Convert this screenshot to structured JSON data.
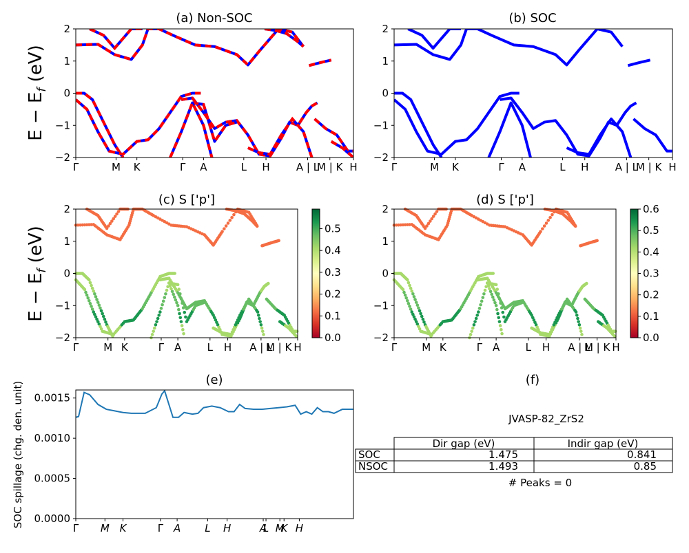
{
  "figure": {
    "panel_a": {
      "title": "(a) Non-SOC"
    },
    "panel_b": {
      "title": "(b) SOC"
    },
    "panel_c": {
      "title": "(c)  S ['p']"
    },
    "panel_d": {
      "title": "(d) S ['p']"
    },
    "panel_e": {
      "title": "(e)"
    },
    "panel_f": {
      "title": "(f)"
    },
    "ylabel_energy": "E − E",
    "ylabel_energy_sub": "f",
    "ylabel_energy_unit": " (eV)",
    "ylabel_spillage": "SOC spillage (chg. den. unit)",
    "kpath_labels_a": [
      "Γ",
      "M",
      "K",
      "Γ",
      "A",
      "L",
      "H",
      "A | L",
      "M | K",
      "H"
    ],
    "kpath_labels_c": [
      "Γ",
      "M",
      "K",
      "Γ",
      "A",
      "L",
      "H",
      "A | L",
      "M | K",
      "H"
    ],
    "kpath_labels_e": [
      "Γ",
      "M",
      "K",
      "Γ",
      "A",
      "L",
      "H",
      "A",
      "L",
      "M",
      "K",
      "H"
    ],
    "energy_yticks": [
      "2",
      "1",
      "0",
      "−1",
      "−2"
    ],
    "colorbar_c_ticks": [
      "0.5",
      "0.4",
      "0.3",
      "0.2",
      "0.1",
      "0.0"
    ],
    "colorbar_d_ticks": [
      "0.6",
      "0.5",
      "0.4",
      "0.3",
      "0.2",
      "0.1",
      "0.0"
    ],
    "spillage_yticks": [
      "0.0015",
      "0.0010",
      "0.0005",
      "0.0000"
    ],
    "table": {
      "material": "JVASP-82_ZrS2",
      "col_headers": [
        "Dir gap (eV)",
        "Indir gap (eV)"
      ],
      "rows": [
        {
          "label": "SOC",
          "dir": "1.475",
          "indir": "0.841"
        },
        {
          "label": "NSOC",
          "dir": "1.493",
          "indir": "0.85"
        }
      ],
      "peaks": "# Peaks = 0"
    },
    "colors": {
      "band_blue": "#0000ff",
      "band_red": "#ff0000",
      "spillage_line": "#1f77b4"
    }
  },
  "chart_data": [
    {
      "type": "line",
      "title": "(a) Non-SOC",
      "ylabel": "E − E_f (eV)",
      "ylim": [
        -2,
        2
      ],
      "xlim": [
        0,
        1
      ],
      "xticks": [
        "Γ",
        "M",
        "K",
        "Γ",
        "A",
        "L",
        "H",
        "A | L",
        "M | K",
        "H"
      ],
      "note": "non-SOC bands drawn blue with red dashes",
      "series": [
        {
          "x": [
            0,
            0.08,
            0.14,
            0.2,
            0.24,
            0.26,
            0.3,
            0.35,
            0.43,
            0.5,
            0.58,
            0.62,
            0.66,
            0.73,
            0.78,
            0.82
          ],
          "y": [
            1.5,
            1.52,
            1.2,
            1.05,
            1.5,
            2.0,
            2.0,
            1.8,
            1.5,
            1.45,
            1.2,
            0.88,
            1.3,
            2.0,
            1.9,
            1.45
          ]
        },
        {
          "x": [
            0.05,
            0.1,
            0.14,
            0.2,
            0.24
          ],
          "y": [
            2.0,
            1.8,
            1.4,
            2.0,
            2.0
          ]
        },
        {
          "x": [
            0.68,
            0.72,
            0.76,
            0.8,
            0.82
          ],
          "y": [
            2.0,
            1.95,
            1.85,
            1.6,
            1.45
          ]
        },
        {
          "x": [
            0.84,
            0.88,
            0.92
          ],
          "y": [
            0.86,
            0.95,
            1.03
          ]
        },
        {
          "x": [
            0,
            0.03,
            0.06,
            0.1,
            0.14,
            0.17
          ],
          "y": [
            0,
            0,
            -0.2,
            -0.9,
            -1.6,
            -2.0
          ]
        },
        {
          "x": [
            0,
            0.04,
            0.08,
            0.12,
            0.17,
            0.22,
            0.26,
            0.3,
            0.34,
            0.38,
            0.42,
            0.45
          ],
          "y": [
            -0.2,
            -0.5,
            -1.2,
            -1.8,
            -1.9,
            -1.5,
            -1.45,
            -1.1,
            -0.6,
            -0.1,
            0,
            0
          ]
        },
        {
          "x": [
            0.38,
            0.42,
            0.46,
            0.5,
            0.54,
            0.58,
            0.62,
            0.66,
            0.7,
            0.74,
            0.77,
            0.8,
            0.83,
            0.85,
            0.87
          ],
          "y": [
            -0.2,
            -0.15,
            -0.6,
            -1.1,
            -0.9,
            -0.85,
            -1.3,
            -1.9,
            -1.95,
            -1.4,
            -0.9,
            -1.0,
            -0.6,
            -0.4,
            -0.3
          ]
        },
        {
          "x": [
            0.42,
            0.46,
            0.5,
            0.54,
            0.58
          ],
          "y": [
            -0.3,
            -0.35,
            -1.5,
            -1.0,
            -0.9
          ]
        },
        {
          "x": [
            0.34,
            0.38,
            0.42,
            0.46,
            0.49
          ],
          "y": [
            -2.0,
            -1.2,
            -0.3,
            -1.0,
            -2.0
          ]
        },
        {
          "x": [
            0.62,
            0.66,
            0.7,
            0.74,
            0.78,
            0.82,
            0.85
          ],
          "y": [
            -1.7,
            -1.85,
            -1.9,
            -1.3,
            -0.8,
            -1.2,
            -2.0
          ]
        },
        {
          "x": [
            0.86,
            0.9,
            0.94,
            0.98,
            1.0
          ],
          "y": [
            -0.8,
            -1.1,
            -1.3,
            -1.8,
            -1.8
          ]
        },
        {
          "x": [
            0.92,
            0.96,
            1.0
          ],
          "y": [
            -1.5,
            -1.7,
            -2.0
          ]
        }
      ]
    },
    {
      "type": "line",
      "title": "(b) SOC",
      "ylim": [
        -2,
        2
      ],
      "xlim": [
        0,
        1
      ],
      "xticks": [
        "Γ",
        "M",
        "K",
        "Γ",
        "A",
        "L",
        "H",
        "A | L",
        "M | K",
        "H"
      ],
      "note": "SOC bands drawn blue",
      "series": [
        {
          "x": [
            0,
            0.08,
            0.14,
            0.2,
            0.24,
            0.26,
            0.3,
            0.35,
            0.43,
            0.5,
            0.58,
            0.62,
            0.66,
            0.73,
            0.78,
            0.82
          ],
          "y": [
            1.5,
            1.52,
            1.2,
            1.05,
            1.5,
            2.0,
            2.0,
            1.8,
            1.5,
            1.45,
            1.2,
            0.88,
            1.3,
            2.0,
            1.9,
            1.45
          ]
        },
        {
          "x": [
            0.05,
            0.1,
            0.14,
            0.2,
            0.24
          ],
          "y": [
            2.0,
            1.8,
            1.4,
            2.0,
            2.0
          ]
        },
        {
          "x": [
            0.84,
            0.88,
            0.92
          ],
          "y": [
            0.86,
            0.95,
            1.03
          ]
        },
        {
          "x": [
            0,
            0.03,
            0.06,
            0.1,
            0.14,
            0.17
          ],
          "y": [
            0,
            0,
            -0.2,
            -0.9,
            -1.6,
            -2.0
          ]
        },
        {
          "x": [
            0,
            0.04,
            0.08,
            0.12,
            0.17,
            0.22,
            0.26,
            0.3,
            0.34,
            0.38,
            0.42,
            0.45
          ],
          "y": [
            -0.2,
            -0.5,
            -1.2,
            -1.8,
            -1.9,
            -1.5,
            -1.45,
            -1.1,
            -0.6,
            -0.1,
            0,
            0
          ]
        },
        {
          "x": [
            0.38,
            0.42,
            0.46,
            0.5,
            0.54,
            0.58,
            0.62,
            0.66,
            0.7,
            0.74,
            0.77,
            0.8,
            0.83,
            0.85,
            0.87
          ],
          "y": [
            -0.2,
            -0.15,
            -0.6,
            -1.1,
            -0.9,
            -0.85,
            -1.3,
            -1.9,
            -1.95,
            -1.4,
            -0.9,
            -1.0,
            -0.6,
            -0.4,
            -0.3
          ]
        },
        {
          "x": [
            0.34,
            0.38,
            0.42,
            0.46,
            0.49
          ],
          "y": [
            -2.0,
            -1.2,
            -0.3,
            -1.0,
            -2.0
          ]
        },
        {
          "x": [
            0.62,
            0.66,
            0.7,
            0.74,
            0.78,
            0.82,
            0.85
          ],
          "y": [
            -1.7,
            -1.85,
            -1.9,
            -1.3,
            -0.8,
            -1.2,
            -2.0
          ]
        },
        {
          "x": [
            0.86,
            0.9,
            0.94,
            0.98,
            1.0
          ],
          "y": [
            -0.8,
            -1.1,
            -1.3,
            -1.8,
            -1.8
          ]
        }
      ]
    },
    {
      "type": "scatter",
      "title": "(c)  S ['p']",
      "ylabel": "E − E_f (eV)",
      "ylim": [
        -2,
        2
      ],
      "xlim": [
        0,
        1
      ],
      "colorbar_range": [
        0.0,
        0.59
      ],
      "colormap": "RdYlGn",
      "note": "points: x, energy, p-character"
    },
    {
      "type": "scatter",
      "title": "(d) S ['p']",
      "ylim": [
        -2,
        2
      ],
      "xlim": [
        0,
        1
      ],
      "colorbar_range": [
        0.0,
        0.6
      ],
      "colormap": "RdYlGn"
    },
    {
      "type": "line",
      "title": "(e)",
      "ylabel": "SOC spillage (chg. den. unit)",
      "ylim": [
        0,
        0.0016
      ],
      "xlim": [
        0,
        1
      ],
      "xticks": [
        "Γ",
        "M",
        "K",
        "Γ",
        "A",
        "L",
        "H",
        "A",
        "L",
        "M",
        "K",
        "H"
      ],
      "x": [
        0,
        0.01,
        0.03,
        0.05,
        0.08,
        0.11,
        0.14,
        0.17,
        0.2,
        0.25,
        0.29,
        0.31,
        0.32,
        0.33,
        0.35,
        0.37,
        0.39,
        0.42,
        0.44,
        0.46,
        0.49,
        0.52,
        0.55,
        0.57,
        0.59,
        0.61,
        0.64,
        0.67,
        0.7,
        0.73,
        0.76,
        0.79,
        0.81,
        0.83,
        0.85,
        0.87,
        0.89,
        0.91,
        0.93,
        0.96,
        1.0
      ],
      "y": [
        0.00126,
        0.00127,
        0.00157,
        0.00154,
        0.00142,
        0.00136,
        0.00134,
        0.00132,
        0.00131,
        0.00131,
        0.00138,
        0.00155,
        0.00159,
        0.00148,
        0.00126,
        0.00126,
        0.00132,
        0.0013,
        0.00131,
        0.00138,
        0.0014,
        0.00138,
        0.00133,
        0.00133,
        0.00142,
        0.00137,
        0.00136,
        0.00136,
        0.00137,
        0.00138,
        0.00139,
        0.00141,
        0.0013,
        0.00133,
        0.0013,
        0.00138,
        0.00133,
        0.00133,
        0.00131,
        0.00136,
        0.00136
      ]
    },
    {
      "type": "table",
      "title": "(f)",
      "material": "JVASP-82_ZrS2",
      "columns": [
        "",
        "Dir gap (eV)",
        "Indir gap (eV)"
      ],
      "rows": [
        [
          "SOC",
          "1.475",
          "0.841"
        ],
        [
          "NSOC",
          "1.493",
          "0.85"
        ]
      ],
      "annotation": "# Peaks = 0"
    }
  ]
}
